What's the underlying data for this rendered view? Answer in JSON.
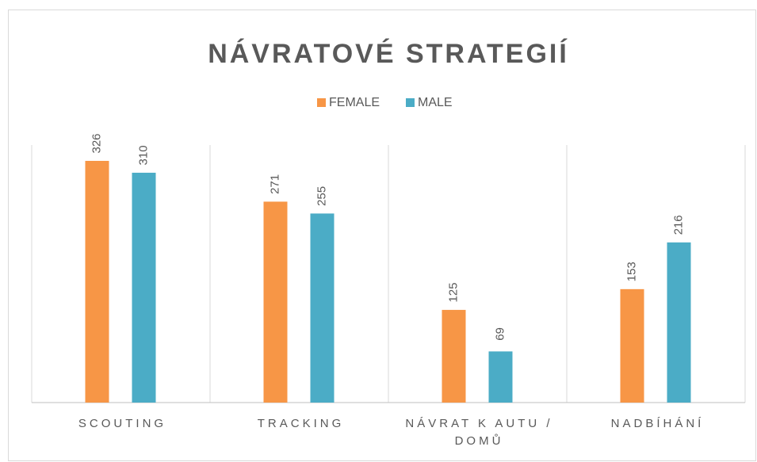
{
  "chart_data": {
    "type": "bar",
    "title": "NÁVRATOVÉ STRATEGIÍ",
    "categories": [
      "SCOUTING",
      "TRACKING",
      "NÁVRAT K AUTU / DOMŮ",
      "NADBÍHÁNÍ"
    ],
    "series": [
      {
        "name": "FEMALE",
        "color": "#f79646",
        "values": [
          326,
          271,
          125,
          153
        ]
      },
      {
        "name": "MALE",
        "color": "#4bacc6",
        "values": [
          310,
          255,
          69,
          216
        ]
      }
    ]
  }
}
